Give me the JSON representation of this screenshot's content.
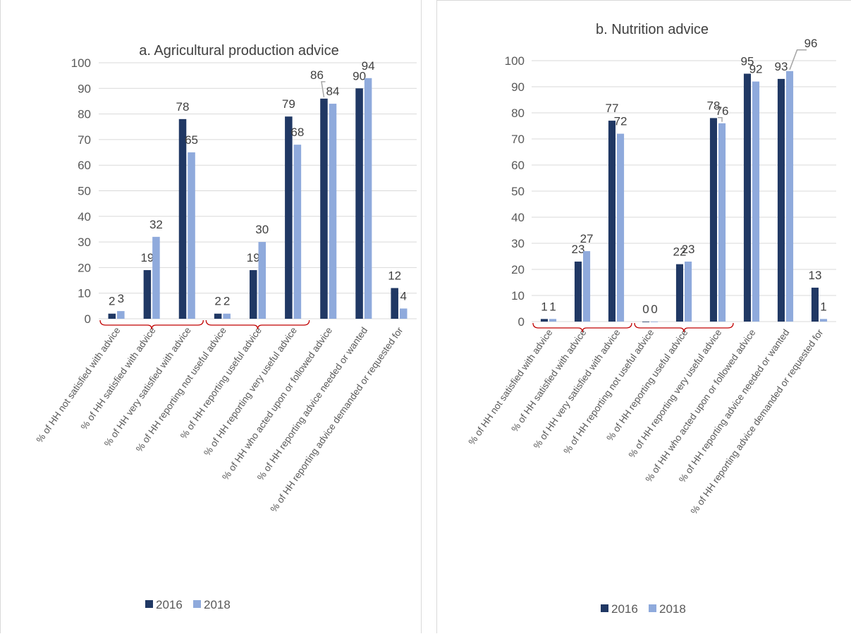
{
  "colors": {
    "s2016": "#203864",
    "s2018": "#8faadc",
    "grid": "#d9d9d9",
    "brace": "#c00000",
    "leader": "#a6a6a6"
  },
  "chart_data": [
    {
      "type": "bar",
      "title": "a. Agricultural production advice",
      "categories": [
        "% of HH not satisfied with advice",
        "% of HH satisfied with advice",
        "% of HH very satisfied with advice",
        "% of HH reporting not useful advice",
        "% of HH reporting useful advice",
        "% of HH reporting very useful advice",
        "% of HH who acted upon or followed advice",
        "% of HH reporting advice needed or wanted",
        "% of HH reporting advice demanded or requested for"
      ],
      "series": [
        {
          "name": "2016",
          "values": [
            2,
            19,
            78,
            2,
            19,
            79,
            86,
            90,
            12
          ]
        },
        {
          "name": "2018",
          "values": [
            3,
            32,
            65,
            2,
            30,
            68,
            84,
            94,
            4
          ]
        }
      ],
      "ylim": [
        0,
        100
      ],
      "yticks": [
        "0",
        "10",
        "20",
        "30",
        "40",
        "50",
        "60",
        "70",
        "80",
        "90",
        "100"
      ],
      "grid": true,
      "legend": "bottom",
      "brace_groups": [
        [
          0,
          2
        ],
        [
          3,
          5
        ]
      ]
    },
    {
      "type": "bar",
      "title": "b. Nutrition advice",
      "categories": [
        "% of HH not satisfied with advice",
        "% of HH satisfied with advice",
        "% of HH very satisfied with advice",
        "% of HH reporting not useful advice",
        "% of HH reporting useful advice",
        "% of HH reporting very useful advice",
        "% of HH who acted upon or followed advice",
        "% of HH reporting advice needed or wanted",
        "% of HH reporting advice demanded or requested for"
      ],
      "series": [
        {
          "name": "2016",
          "values": [
            1,
            23,
            77,
            0,
            22,
            78,
            95,
            93,
            13
          ]
        },
        {
          "name": "2018",
          "values": [
            1,
            27,
            72,
            0,
            23,
            76,
            92,
            96,
            1
          ]
        }
      ],
      "ylim": [
        0,
        100
      ],
      "yticks": [
        "0",
        "10",
        "20",
        "30",
        "40",
        "50",
        "60",
        "70",
        "80",
        "90",
        "100"
      ],
      "grid": true,
      "legend": "bottom",
      "brace_groups": [
        [
          0,
          2
        ],
        [
          3,
          5
        ]
      ]
    }
  ]
}
